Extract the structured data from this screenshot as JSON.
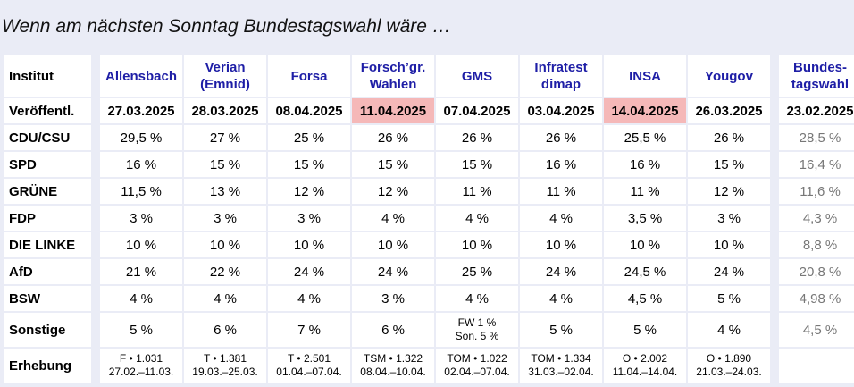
{
  "title": "Wenn am nächsten Sonntag Bundestagswahl wäre …",
  "header": {
    "corner": "Institut",
    "institutes": [
      {
        "line1": "Allensbach",
        "line2": ""
      },
      {
        "line1": "Verian",
        "line2": "(Emnid)"
      },
      {
        "line1": "Forsa",
        "line2": ""
      },
      {
        "line1": "Forsch’gr.",
        "line2": "Wahlen"
      },
      {
        "line1": "GMS",
        "line2": ""
      },
      {
        "line1": "Infratest",
        "line2": "dimap"
      },
      {
        "line1": "INSA",
        "line2": ""
      },
      {
        "line1": "Yougov",
        "line2": ""
      }
    ],
    "election": {
      "line1": "Bundes-",
      "line2": "tagswahl"
    }
  },
  "dates": {
    "label": "Veröffentl.",
    "values": [
      "27.03.2025",
      "28.03.2025",
      "08.04.2025",
      "11.04.2025",
      "07.04.2025",
      "03.04.2025",
      "14.04.2025",
      "26.03.2025"
    ],
    "election": "23.02.2025",
    "highlight_color": "#f5b8b8"
  },
  "rows": [
    {
      "party": "CDU/CSU",
      "values": [
        "29,5 %",
        "27 %",
        "25 %",
        "26 %",
        "26 %",
        "26 %",
        "25,5 %",
        "26 %"
      ],
      "election": "28,5 %"
    },
    {
      "party": "SPD",
      "values": [
        "16 %",
        "15 %",
        "15 %",
        "15 %",
        "15 %",
        "16 %",
        "16 %",
        "15 %"
      ],
      "election": "16,4 %"
    },
    {
      "party": "GRÜNE",
      "values": [
        "11,5 %",
        "13 %",
        "12 %",
        "12 %",
        "11 %",
        "11 %",
        "11 %",
        "12 %"
      ],
      "election": "11,6 %"
    },
    {
      "party": "FDP",
      "values": [
        "3 %",
        "3 %",
        "3 %",
        "4 %",
        "4 %",
        "4 %",
        "3,5 %",
        "3 %"
      ],
      "election": "4,3 %"
    },
    {
      "party": "DIE LINKE",
      "values": [
        "10 %",
        "10 %",
        "10 %",
        "10 %",
        "10 %",
        "10 %",
        "10 %",
        "10 %"
      ],
      "election": "8,8 %"
    },
    {
      "party": "AfD",
      "values": [
        "21 %",
        "22 %",
        "24 %",
        "24 %",
        "25 %",
        "24 %",
        "24,5 %",
        "24 %"
      ],
      "election": "20,8 %"
    },
    {
      "party": "BSW",
      "values": [
        "4 %",
        "4 %",
        "4 %",
        "3 %",
        "4 %",
        "4 %",
        "4,5 %",
        "5 %"
      ],
      "election": "4,98 %"
    }
  ],
  "sonstige": {
    "party": "Sonstige",
    "values": [
      "5 %",
      "6 %",
      "7 %",
      "6 %",
      "",
      "5 %",
      "5 %",
      "4 %"
    ],
    "gms_line1": "FW 1 %",
    "gms_line2": "Son. 5 %",
    "election": "4,5 %"
  },
  "erhebung": {
    "label": "Erhebung",
    "values": [
      {
        "line1": "F • 1.031",
        "line2": "27.02.–11.03."
      },
      {
        "line1": "T • 1.381",
        "line2": "19.03.–25.03."
      },
      {
        "line1": "T • 2.501",
        "line2": "01.04.–07.04."
      },
      {
        "line1": "TSM • 1.322",
        "line2": "08.04.–10.04."
      },
      {
        "line1": "TOM • 1.022",
        "line2": "02.04.–07.04."
      },
      {
        "line1": "TOM • 1.334",
        "line2": "31.03.–02.04."
      },
      {
        "line1": "O • 2.002",
        "line2": "11.04.–14.04."
      },
      {
        "line1": "O • 1.890",
        "line2": "21.03.–24.03."
      }
    ],
    "election": ""
  },
  "colors": {
    "background": "#eaecf6",
    "link": "#1e1ea6",
    "election_text": "#777777"
  }
}
